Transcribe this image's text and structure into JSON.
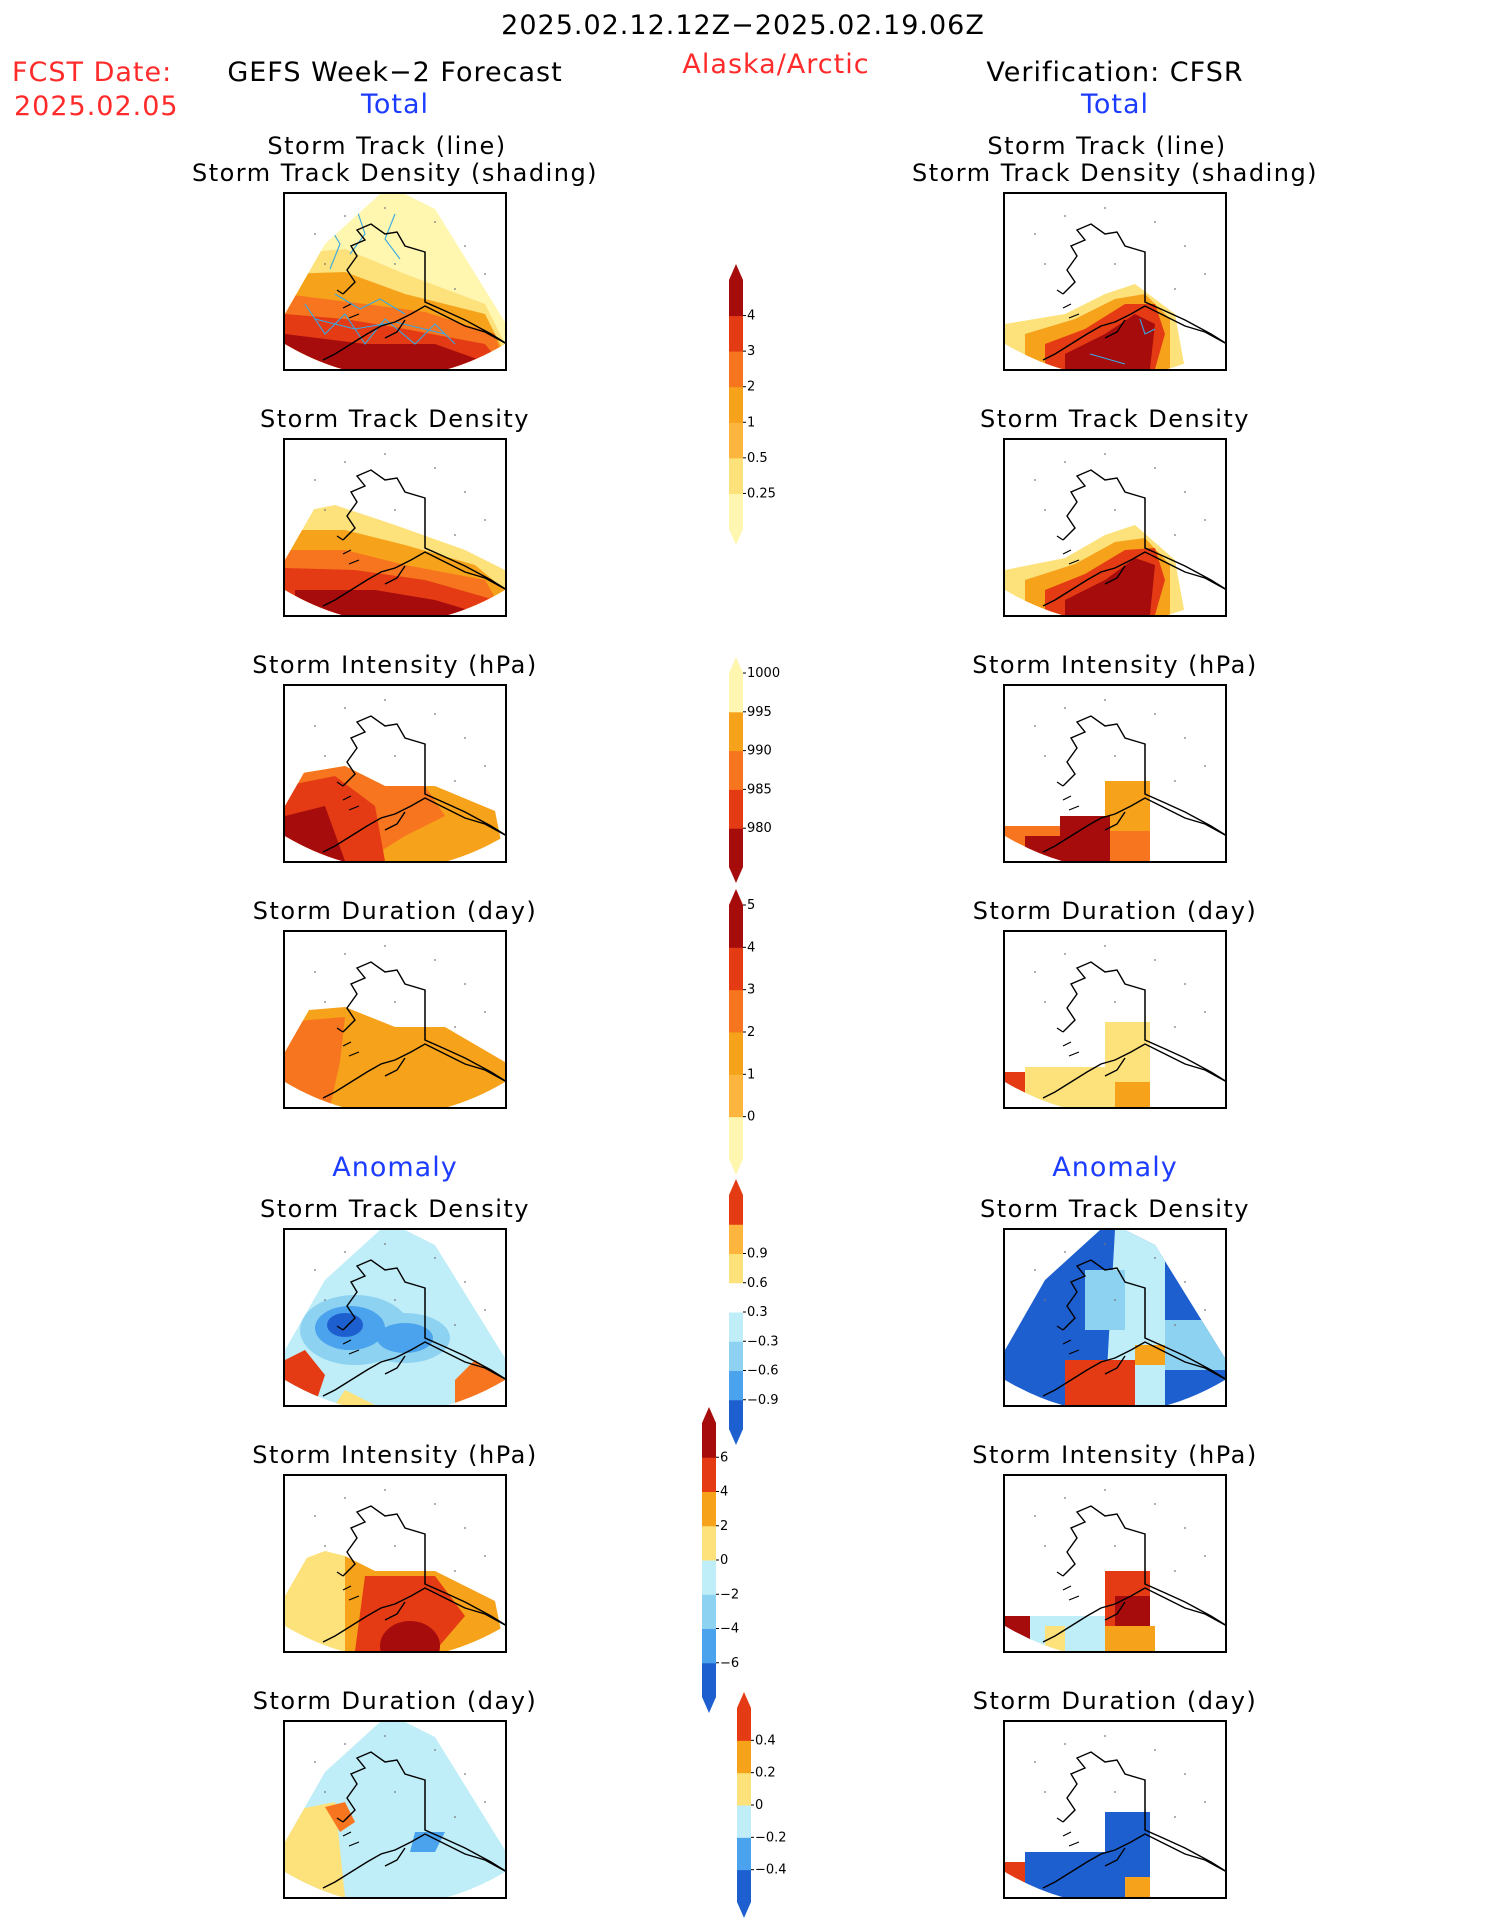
{
  "header": {
    "period": "2025.02.12.12Z−2025.02.19.06Z",
    "region": "Alaska/Arctic",
    "fcst_label": "FCST Date:",
    "fcst_date": "2025.02.05",
    "left_source": "GEFS Week−2 Forecast",
    "right_source": "Verification: CFSR",
    "left_section": "Total",
    "right_section": "Total"
  },
  "anomaly_label": "Anomaly",
  "panel_titles": {
    "track_line": "Storm Track (line)",
    "track_density_shading": "Storm Track Density (shading)",
    "track_density": "Storm Track Density",
    "intensity": "Storm Intensity (hPa)",
    "duration": "Storm Duration (day)"
  },
  "colors": {
    "c1": "#fff6b0",
    "c2": "#fde17a",
    "c3": "#fdb53d",
    "c4": "#f6a21a",
    "c5": "#f7751e",
    "c6": "#e43b14",
    "c7": "#a60c0c",
    "b1": "#bfeef8",
    "b2": "#8ed2f2",
    "b3": "#4aa3ec",
    "b4": "#1e5fd0",
    "track": "#35a9e6"
  },
  "colorbars": [
    {
      "name": "density-total",
      "labels": [
        "0.25",
        "0.5",
        "1",
        "2",
        "3",
        "4"
      ]
    },
    {
      "name": "intensity-total",
      "labels": [
        "980",
        "985",
        "990",
        "995",
        "1000"
      ]
    },
    {
      "name": "duration-total",
      "labels": [
        "0",
        "1",
        "2",
        "3",
        "4",
        "5"
      ]
    },
    {
      "name": "density-anomaly",
      "labels": [
        "−0.9",
        "−0.6",
        "−0.3",
        "0.3",
        "0.6",
        "0.9"
      ]
    },
    {
      "name": "intensity-anomaly",
      "labels": [
        "−6",
        "−4",
        "−2",
        "0",
        "2",
        "4",
        "6"
      ]
    },
    {
      "name": "duration-anomaly",
      "labels": [
        "−0.4",
        "−0.2",
        "0",
        "0.2",
        "0.4"
      ]
    }
  ]
}
